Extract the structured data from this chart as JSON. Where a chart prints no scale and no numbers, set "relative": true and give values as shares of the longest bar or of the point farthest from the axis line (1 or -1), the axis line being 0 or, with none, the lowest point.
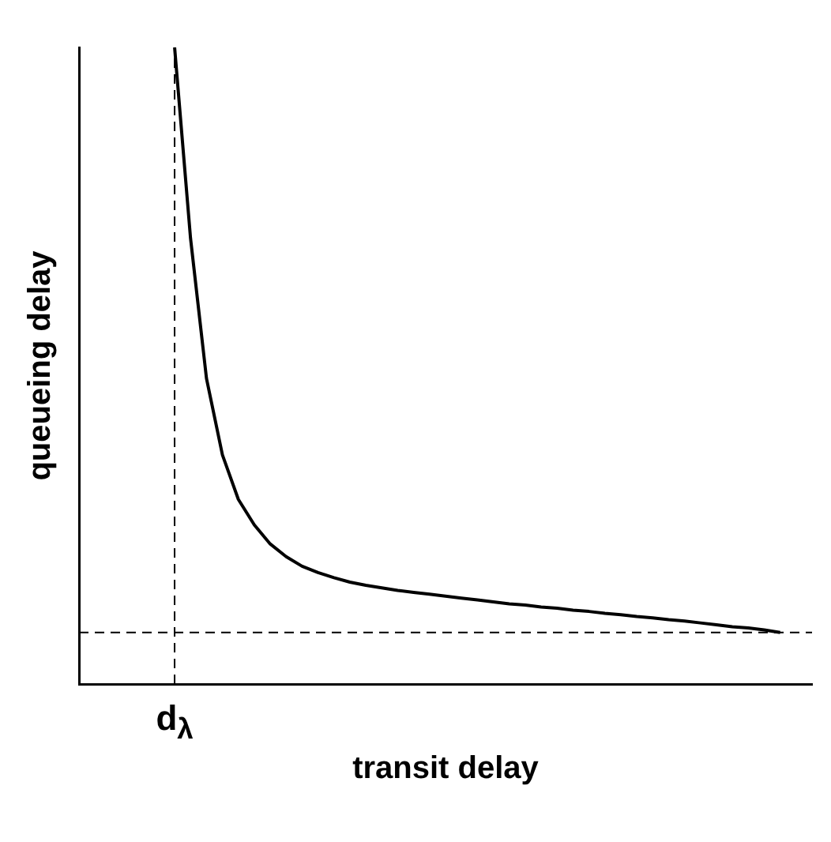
{
  "chart_data": {
    "type": "line",
    "relative": true,
    "xlabel": "transit delay",
    "ylabel": "queueing delay",
    "categories": [
      null,
      null,
      null,
      null,
      null,
      null,
      null,
      null,
      null,
      null,
      null,
      null,
      null,
      null,
      null,
      null,
      null,
      null,
      null,
      null,
      null,
      null,
      null,
      null,
      null,
      null,
      null,
      null,
      null,
      null,
      null,
      null,
      null,
      null,
      null,
      null,
      null,
      null,
      null,
      null,
      null,
      null,
      null,
      null,
      null,
      null,
      null
    ],
    "series": [
      {
        "color": "#000000",
        "values": [
          null,
          null,
          null,
          null,
          null,
          null,
          1.0,
          0.7,
          0.48,
          0.36,
          0.29,
          0.25,
          0.22,
          0.2,
          0.185,
          0.175,
          0.167,
          0.16,
          0.155,
          0.151,
          0.147,
          0.144,
          0.141,
          0.138,
          0.135,
          0.132,
          0.129,
          0.126,
          0.124,
          0.121,
          0.119,
          0.116,
          0.114,
          0.111,
          0.109,
          0.106,
          0.104,
          0.101,
          0.099,
          0.096,
          0.093,
          0.09,
          0.088,
          0.085,
          0.081,
          null,
          null
        ]
      }
    ],
    "ref_lines": [
      {
        "axis": "y",
        "value": 0.081,
        "line_style": "dashed"
      },
      {
        "axis": "x",
        "label": "d$_{λ}$",
        "line_style": "dashed"
      }
    ],
    "grid": false,
    "legend": false,
    "marker": "none",
    "line_style": "solid"
  }
}
